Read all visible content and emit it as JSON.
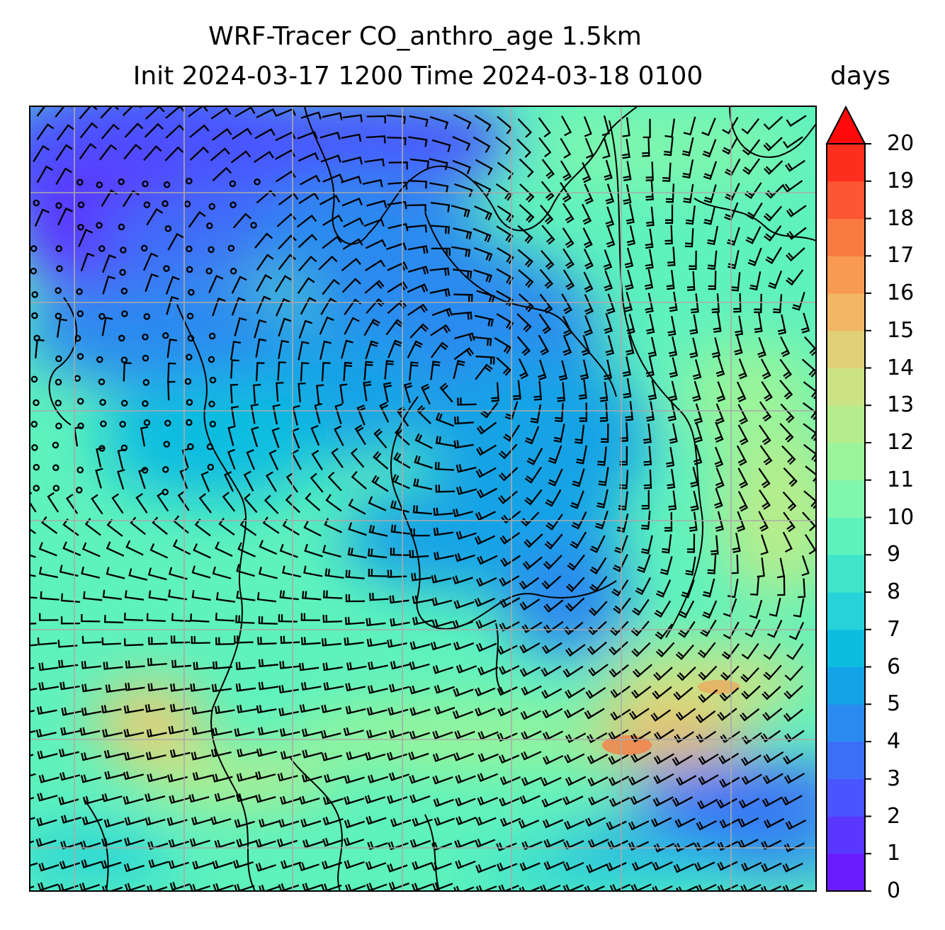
{
  "title_line1": "WRF-Tracer CO_anthro_age 1.5km",
  "title_line2": "Init 2024-03-17 1200 Time 2024-03-18 0100",
  "units": "days",
  "colorbar": {
    "min": 0,
    "max": 20,
    "extend": "max",
    "tick_labels": [
      "0",
      "1",
      "2",
      "3",
      "4",
      "5",
      "6",
      "7",
      "8",
      "9",
      "10",
      "11",
      "12",
      "13",
      "14",
      "15",
      "16",
      "17",
      "18",
      "19",
      "20"
    ],
    "colors": [
      "#6a1bff",
      "#5a37ff",
      "#4a54ff",
      "#3c6ef8",
      "#2a8aef",
      "#14a3e6",
      "#0cbde0",
      "#27d2d8",
      "#3fe4c9",
      "#5ef2bd",
      "#7ff7ad",
      "#9af49a",
      "#b5ed8c",
      "#cbe385",
      "#e1cf78",
      "#f1b764",
      "#f99a52",
      "#fb7a42",
      "#fd5632",
      "#fe2e1f",
      "#ff0a0a"
    ]
  },
  "map": {
    "field": "CO_anthro_age",
    "level": "1.5km",
    "overlays": [
      "wind barbs",
      "coastlines",
      "lat-lon gridlines"
    ]
  }
}
